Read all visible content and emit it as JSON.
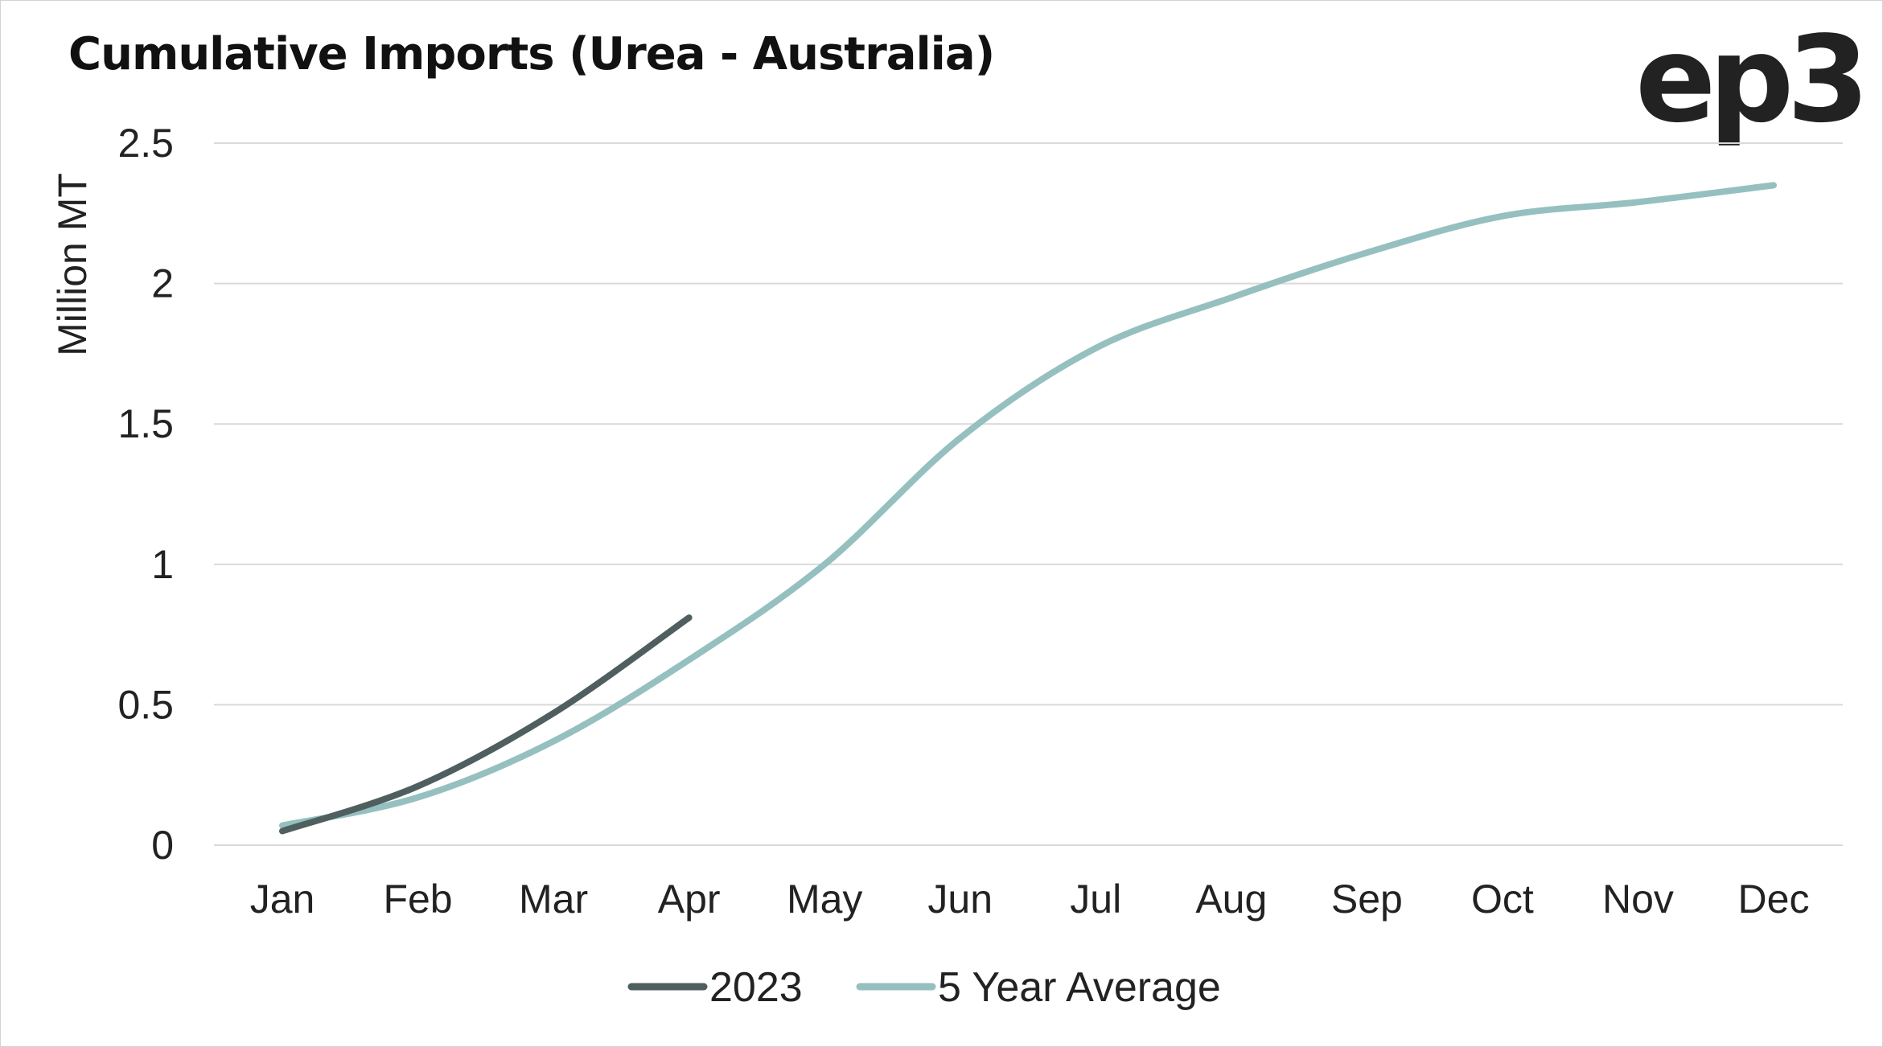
{
  "chart_data": {
    "type": "line",
    "title": "Cumulative Imports (Urea - Australia)",
    "logo_text": "ep3",
    "ylabel": "Million MT",
    "xlabel": "",
    "categories": [
      "Jan",
      "Feb",
      "Mar",
      "Apr",
      "May",
      "Jun",
      "Jul",
      "Aug",
      "Sep",
      "Oct",
      "Nov",
      "Dec"
    ],
    "ylim": [
      0,
      2.5
    ],
    "yticks": [
      "0",
      "0.5",
      "1",
      "1.5",
      "2",
      "2.5"
    ],
    "grid": true,
    "legend_position": "bottom",
    "series": [
      {
        "name": "2023",
        "color": "#4f5f5f",
        "values": [
          0.05,
          0.21,
          0.47,
          0.81,
          null,
          null,
          null,
          null,
          null,
          null,
          null,
          null
        ]
      },
      {
        "name": "5 Year Average",
        "color": "#96c0c0",
        "values": [
          0.07,
          0.17,
          0.37,
          0.66,
          1.0,
          1.45,
          1.77,
          1.95,
          2.11,
          2.24,
          2.29,
          2.35
        ]
      }
    ]
  }
}
